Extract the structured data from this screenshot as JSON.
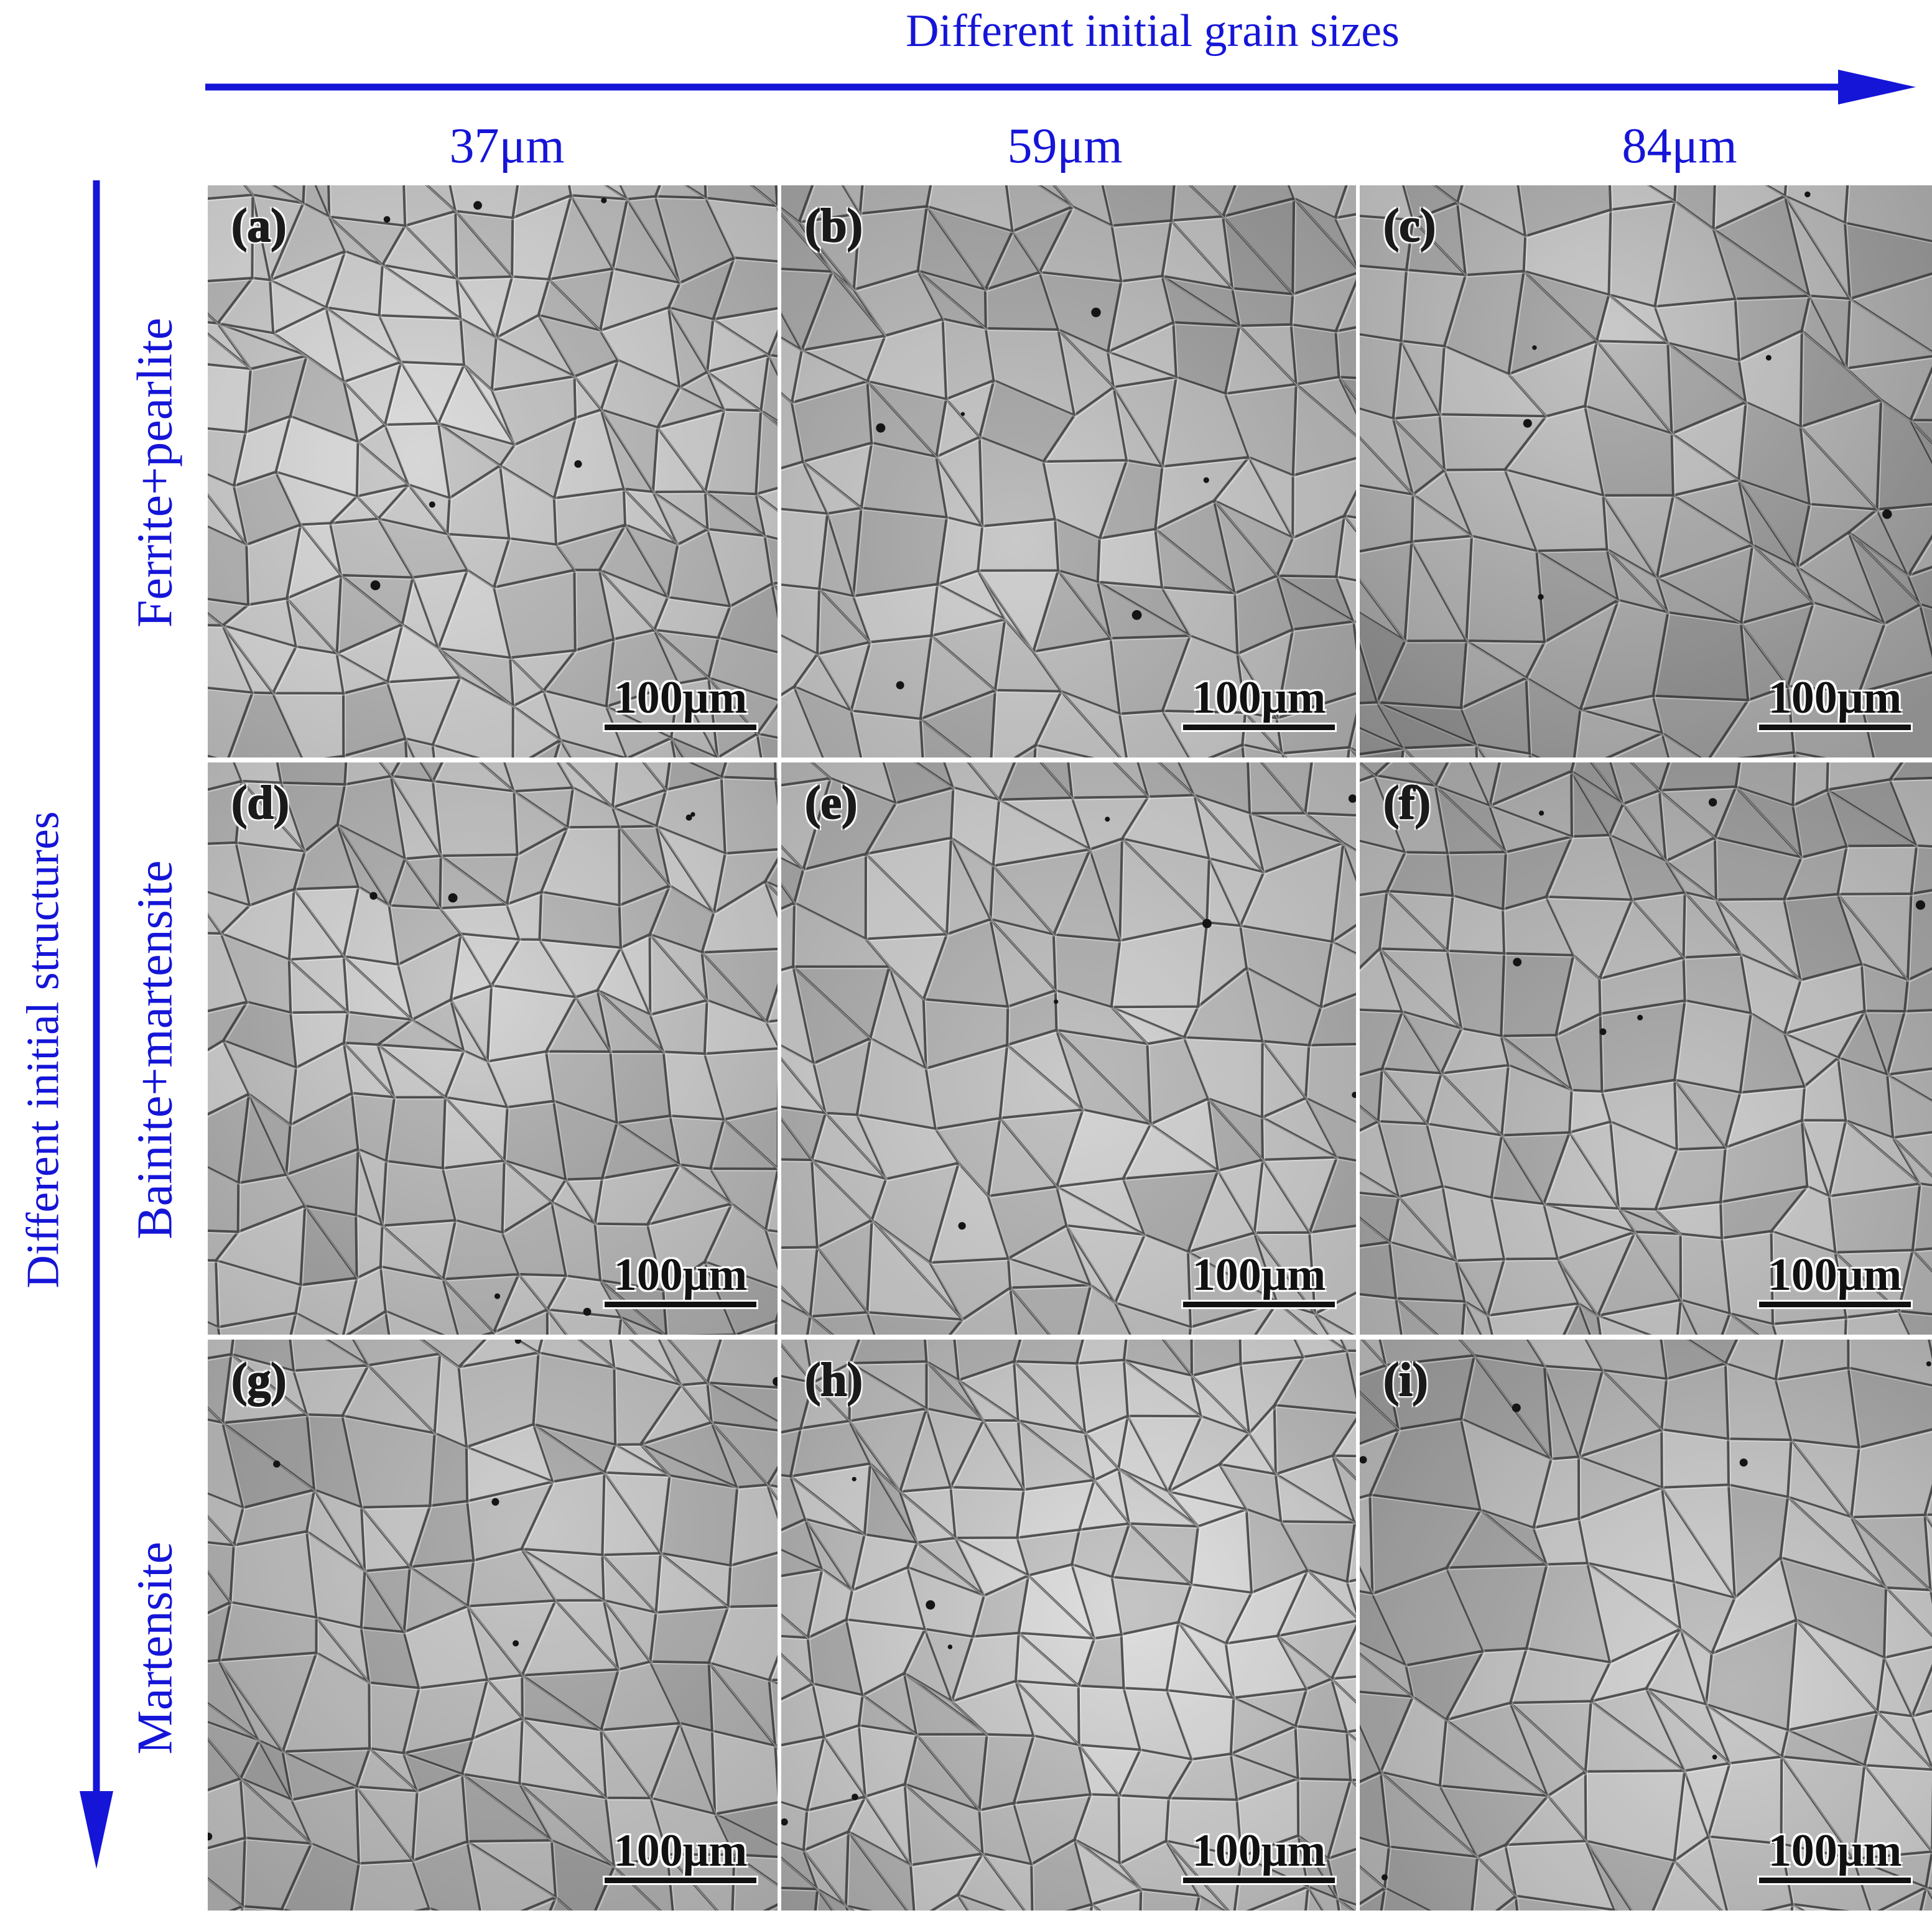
{
  "col_axis_title": "Different initial grain sizes",
  "row_axis_title": "Different initial structures",
  "columns": [
    "37μm",
    "59μm",
    "84μm"
  ],
  "rows": [
    "Ferrite+pearlite",
    "Bainite+martensite",
    "Martensite"
  ],
  "scale_label": "100μm",
  "panels": [
    {
      "letter": "(a)",
      "tone": "#a9a9a9",
      "light": "#d6d6d6",
      "grain": 0.8
    },
    {
      "letter": "(b)",
      "tone": "#9c9c9c",
      "light": "#c8c8c8",
      "grain": 0.9
    },
    {
      "letter": "(c)",
      "tone": "#8e8e8e",
      "light": "#c4c4c4",
      "grain": 1.0
    },
    {
      "letter": "(d)",
      "tone": "#a0a0a0",
      "light": "#d2d2d2",
      "grain": 0.8
    },
    {
      "letter": "(e)",
      "tone": "#a6a6a6",
      "light": "#cdcdcd",
      "grain": 0.95
    },
    {
      "letter": "(f)",
      "tone": "#9a9a9a",
      "light": "#c3c3c3",
      "grain": 0.85
    },
    {
      "letter": "(g)",
      "tone": "#9e9e9e",
      "light": "#c6c6c6",
      "grain": 0.9
    },
    {
      "letter": "(h)",
      "tone": "#a3a3a3",
      "light": "#dcdcdc",
      "grain": 0.8
    },
    {
      "letter": "(i)",
      "tone": "#9d9d9d",
      "light": "#cfcfcf",
      "grain": 1.0
    }
  ],
  "colors": {
    "axis_blue": "#1515d8",
    "boundary": "#2b2b2b"
  }
}
